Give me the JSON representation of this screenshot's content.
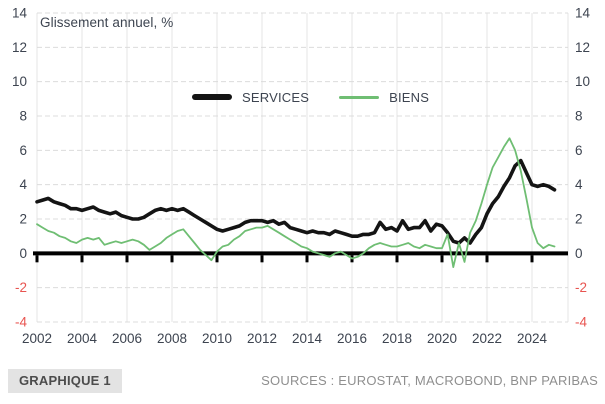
{
  "header": {
    "title": "Glissement annuel, %"
  },
  "legend": {
    "items": [
      {
        "label": "SERVICES",
        "color": "#141414"
      },
      {
        "label": "BIENS",
        "color": "#6fbe73"
      }
    ]
  },
  "footer": {
    "badge": "GRAPHIQUE 1",
    "sources": "SOURCES : EUROSTAT, MACROBOND, BNP PARIBAS"
  },
  "colors": {
    "axis_text": "#3d4450",
    "negative_tick": "#e85450",
    "grid_horizontal": "#dcdcdc",
    "grid_vertical": "#e4e4e4",
    "zero_line": "#000000"
  },
  "chart_data": {
    "type": "line",
    "title": "Glissement annuel, %",
    "xlabel": "",
    "ylabel": "",
    "ylim": [
      -4,
      14
    ],
    "yticks": [
      14,
      12,
      10,
      8,
      6,
      4,
      2,
      0,
      -2,
      -4
    ],
    "xticks": [
      2002,
      2004,
      2006,
      2008,
      2010,
      2012,
      2014,
      2016,
      2018,
      2020,
      2022,
      2024
    ],
    "grid": true,
    "legend_position": "top-center",
    "x_start": 2002,
    "x_step": 0.25,
    "series": [
      {
        "name": "SERVICES",
        "color": "#141414",
        "width": 3.6,
        "values": [
          3.0,
          3.1,
          3.2,
          3.0,
          2.9,
          2.8,
          2.6,
          2.6,
          2.5,
          2.6,
          2.7,
          2.5,
          2.4,
          2.3,
          2.4,
          2.2,
          2.1,
          2.0,
          2.0,
          2.1,
          2.3,
          2.5,
          2.6,
          2.5,
          2.6,
          2.5,
          2.6,
          2.4,
          2.2,
          2.0,
          1.8,
          1.6,
          1.4,
          1.3,
          1.4,
          1.5,
          1.6,
          1.8,
          1.9,
          1.9,
          1.9,
          1.8,
          1.9,
          1.7,
          1.8,
          1.5,
          1.4,
          1.3,
          1.2,
          1.3,
          1.2,
          1.2,
          1.1,
          1.3,
          1.2,
          1.1,
          1.0,
          1.0,
          1.1,
          1.1,
          1.2,
          1.8,
          1.4,
          1.5,
          1.3,
          1.9,
          1.4,
          1.5,
          1.5,
          1.9,
          1.3,
          1.7,
          1.6,
          1.2,
          0.7,
          0.6,
          0.9,
          0.6,
          1.1,
          1.5,
          2.3,
          2.9,
          3.3,
          3.9,
          4.4,
          5.1,
          5.4,
          4.7,
          4.0,
          3.9,
          4.0,
          3.9,
          3.7
        ]
      },
      {
        "name": "BIENS",
        "color": "#6fbe73",
        "width": 1.8,
        "values": [
          1.7,
          1.5,
          1.3,
          1.2,
          1.0,
          0.9,
          0.7,
          0.6,
          0.8,
          0.9,
          0.8,
          0.9,
          0.5,
          0.6,
          0.7,
          0.6,
          0.7,
          0.8,
          0.7,
          0.5,
          0.2,
          0.4,
          0.6,
          0.9,
          1.1,
          1.3,
          1.4,
          1.0,
          0.6,
          0.2,
          -0.1,
          -0.4,
          0.1,
          0.4,
          0.5,
          0.8,
          1.0,
          1.3,
          1.4,
          1.5,
          1.5,
          1.6,
          1.4,
          1.2,
          1.0,
          0.8,
          0.6,
          0.4,
          0.3,
          0.1,
          0.0,
          -0.1,
          -0.2,
          0.0,
          0.1,
          -0.1,
          -0.3,
          -0.2,
          0.0,
          0.3,
          0.5,
          0.6,
          0.5,
          0.4,
          0.4,
          0.5,
          0.6,
          0.4,
          0.3,
          0.5,
          0.4,
          0.3,
          0.3,
          1.1,
          -0.8,
          0.6,
          -0.5,
          1.2,
          1.9,
          2.9,
          4.0,
          5.0,
          5.6,
          6.2,
          6.7,
          6.0,
          4.8,
          3.2,
          1.5,
          0.6,
          0.3,
          0.5,
          0.4
        ]
      }
    ]
  }
}
